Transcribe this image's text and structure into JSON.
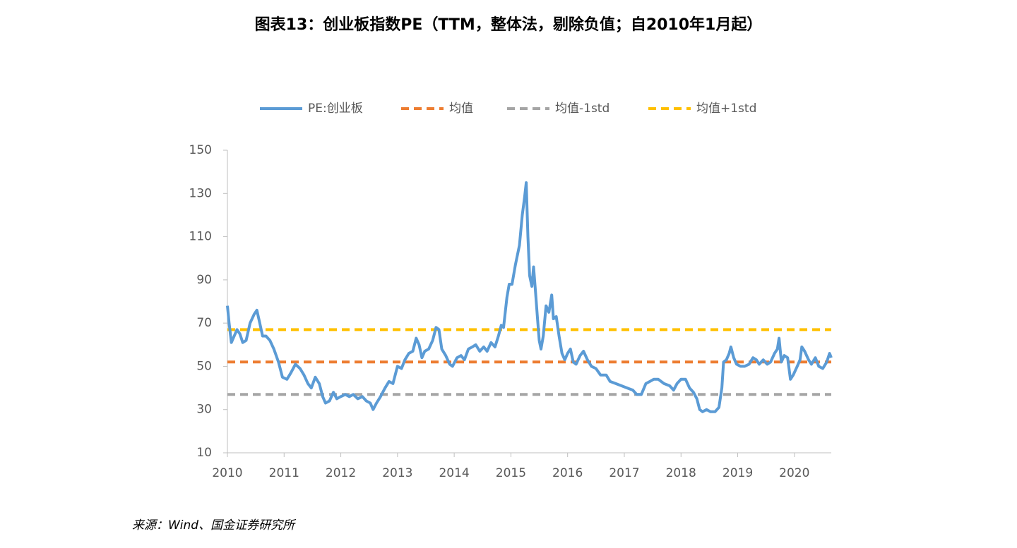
{
  "chart_data": {
    "type": "line",
    "title": "图表13：创业板指数PE（TTM，整体法，剔除负值；自2010年1月起）",
    "source": "来源：Wind、国金证券研究所",
    "x": [
      2010.0,
      2010.03,
      2010.07,
      2010.12,
      2010.17,
      2010.22,
      2010.27,
      2010.33,
      2010.4,
      2010.47,
      2010.52,
      2010.57,
      2010.62,
      2010.68,
      2010.75,
      2010.82,
      2010.9,
      2010.97,
      2011.05,
      2011.12,
      2011.2,
      2011.28,
      2011.35,
      2011.42,
      2011.48,
      2011.55,
      2011.62,
      2011.68,
      2011.73,
      2011.8,
      2011.87,
      2011.93,
      2012.0,
      2012.08,
      2012.15,
      2012.22,
      2012.3,
      2012.38,
      2012.45,
      2012.52,
      2012.57,
      2012.63,
      2012.7,
      2012.78,
      2012.85,
      2012.92,
      2013.0,
      2013.07,
      2013.13,
      2013.2,
      2013.27,
      2013.33,
      2013.38,
      2013.43,
      2013.48,
      2013.55,
      2013.62,
      2013.68,
      2013.73,
      2013.78,
      2013.85,
      2013.92,
      2013.97,
      2014.05,
      2014.12,
      2014.18,
      2014.25,
      2014.32,
      2014.38,
      2014.45,
      2014.52,
      2014.58,
      2014.65,
      2014.72,
      2014.78,
      2014.83,
      2014.87,
      2014.93,
      2014.97,
      2015.02,
      2015.08,
      2015.15,
      2015.2,
      2015.24,
      2015.27,
      2015.3,
      2015.33,
      2015.37,
      2015.4,
      2015.43,
      2015.47,
      2015.5,
      2015.53,
      2015.57,
      2015.62,
      2015.67,
      2015.72,
      2015.75,
      2015.8,
      2015.85,
      2015.9,
      2015.95,
      2016.0,
      2016.05,
      2016.1,
      2016.15,
      2016.22,
      2016.28,
      2016.35,
      2016.42,
      2016.5,
      2016.58,
      2016.68,
      2016.75,
      2016.85,
      2016.95,
      2017.05,
      2017.15,
      2017.22,
      2017.3,
      2017.38,
      2017.45,
      2017.52,
      2017.6,
      2017.7,
      2017.8,
      2017.87,
      2017.93,
      2018.0,
      2018.08,
      2018.15,
      2018.22,
      2018.28,
      2018.33,
      2018.38,
      2018.45,
      2018.52,
      2018.6,
      2018.67,
      2018.72,
      2018.75,
      2018.8,
      2018.85,
      2018.88,
      2018.93,
      2018.98,
      2019.05,
      2019.12,
      2019.2,
      2019.27,
      2019.33,
      2019.38,
      2019.45,
      2019.52,
      2019.58,
      2019.65,
      2019.7,
      2019.73,
      2019.77,
      2019.82,
      2019.88,
      2019.93,
      2019.98,
      2020.05,
      2020.1,
      2020.13,
      2020.18,
      2020.25,
      2020.3,
      2020.37,
      2020.43,
      2020.5,
      2020.57,
      2020.62,
      2020.65
    ],
    "series": [
      {
        "name": "PE:创业板",
        "color": "#5b9bd5",
        "values": [
          78,
          70,
          61,
          64,
          67,
          65,
          61,
          62,
          70,
          74,
          76,
          70,
          64,
          64,
          62,
          58,
          52,
          45,
          44,
          47,
          51,
          49,
          46,
          42,
          40,
          45,
          42,
          36,
          33,
          34,
          38,
          35,
          36,
          37,
          36,
          37,
          35,
          36,
          34,
          33,
          30,
          33,
          36,
          40,
          43,
          42,
          50,
          49,
          53,
          56,
          57,
          63,
          60,
          54,
          57,
          58,
          62,
          68,
          67,
          58,
          55,
          51,
          50,
          54,
          55,
          53,
          58,
          59,
          60,
          57,
          59,
          57,
          61,
          59,
          64,
          69,
          68,
          82,
          88,
          88,
          97,
          106,
          120,
          128,
          135,
          110,
          92,
          87,
          96,
          86,
          72,
          62,
          58,
          64,
          78,
          75,
          83,
          72,
          73,
          64,
          56,
          53,
          56,
          58,
          52,
          51,
          55,
          57,
          53,
          50,
          49,
          46,
          46,
          43,
          42,
          41,
          40,
          39,
          37,
          37,
          42,
          43,
          44,
          44,
          42,
          41,
          39,
          42,
          44,
          44,
          40,
          38,
          35,
          30,
          29,
          30,
          29,
          29,
          31,
          40,
          52,
          53,
          56,
          59,
          54,
          51,
          50,
          50,
          51,
          54,
          53,
          51,
          53,
          51,
          52,
          56,
          58,
          63,
          52,
          55,
          54,
          44,
          46,
          50,
          53,
          59,
          57,
          53,
          51,
          54,
          50,
          49,
          52,
          56,
          54
        ]
      }
    ],
    "reference_lines": [
      {
        "name": "均值",
        "color": "#ed7d31",
        "value": 52
      },
      {
        "name": "均值-1std",
        "color": "#a5a5a5",
        "value": 37
      },
      {
        "name": "均值+1std",
        "color": "#ffc000",
        "value": 67
      }
    ],
    "xlim": [
      2010,
      2020.65
    ],
    "xticks": [
      2010,
      2011,
      2012,
      2013,
      2014,
      2015,
      2016,
      2017,
      2018,
      2019,
      2020
    ],
    "ylim": [
      10,
      150
    ],
    "yticks": [
      10,
      30,
      50,
      70,
      90,
      110,
      130,
      150
    ]
  }
}
